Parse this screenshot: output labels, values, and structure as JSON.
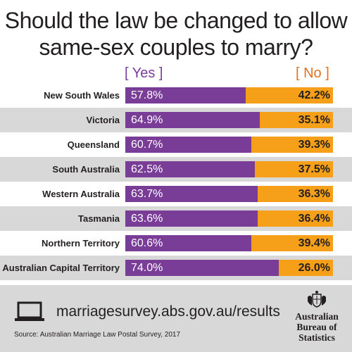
{
  "title_lines": [
    "Should the law be changed to allow",
    "same-sex couples to marry?"
  ],
  "legend": {
    "yes": "[ Yes ]",
    "no": "[ No ]"
  },
  "colors": {
    "yes": "#7a3d97",
    "no": "#f6a01a",
    "band": "#d8d8d8"
  },
  "chart_data": {
    "type": "bar",
    "stacked": true,
    "orientation": "horizontal",
    "title": "Should the law be changed to allow same-sex couples to marry?",
    "categories": [
      "New South Wales",
      "Victoria",
      "Queensland",
      "South Australia",
      "Western Australia",
      "Tasmania",
      "Northern Territory",
      "Australian Capital Territory"
    ],
    "series": [
      {
        "name": "[ Yes ]",
        "values": [
          57.8,
          64.9,
          60.7,
          62.5,
          63.7,
          63.6,
          60.6,
          74.0
        ],
        "labels": [
          "57.8%",
          "64.9%",
          "60.7%",
          "62.5%",
          "63.7%",
          "63.6%",
          "60.6%",
          "74.0%"
        ]
      },
      {
        "name": "[ No ]",
        "values": [
          42.2,
          35.1,
          39.3,
          37.5,
          36.3,
          36.4,
          39.4,
          26.0
        ],
        "labels": [
          "42.2%",
          "35.1%",
          "39.3%",
          "37.5%",
          "36.3%",
          "36.4%",
          "39.4%",
          "26.0%"
        ]
      }
    ]
  },
  "footer": {
    "url": "marriagesurvey.abs.gov.au/results",
    "source": "Source: Australian Marriage Law Postal Survey, 2017",
    "logo_lines": [
      "Australian",
      "Bureau of",
      "Statistics"
    ],
    "icons": [
      "laptop-icon",
      "abs-crest-icon"
    ]
  }
}
